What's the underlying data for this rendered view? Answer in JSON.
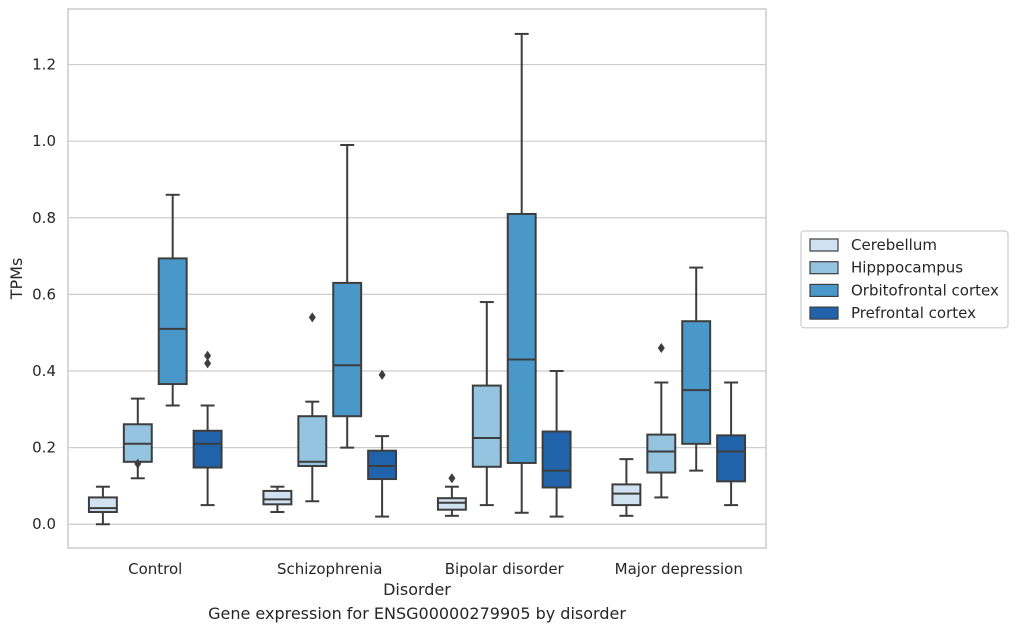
{
  "caption": "Gene expression for ENSG00000279905 by disorder",
  "chart_data": {
    "type": "box",
    "title": "",
    "xlabel": "Disorder",
    "ylabel": "TPMs",
    "ylim": [
      -0.062,
      1.345
    ],
    "yticks": [
      0.0,
      0.2,
      0.4,
      0.6,
      0.8,
      1.0,
      1.2
    ],
    "ytick_labels": [
      "0.0",
      "0.2",
      "0.4",
      "0.6",
      "0.8",
      "1.0",
      "1.2"
    ],
    "grid": "horizontal",
    "legend_position": "right",
    "categories": [
      "Control",
      "Schizophrenia",
      "Bipolar disorder",
      "Major depression"
    ],
    "series": [
      {
        "name": "Cerebellum",
        "color": "#d0e1f2",
        "boxes": [
          {
            "whisker_low": 0.0,
            "q1": 0.032,
            "median": 0.042,
            "q3": 0.07,
            "whisker_high": 0.098,
            "outliers": []
          },
          {
            "whisker_low": 0.032,
            "q1": 0.052,
            "median": 0.065,
            "q3": 0.087,
            "whisker_high": 0.098,
            "outliers": []
          },
          {
            "whisker_low": 0.022,
            "q1": 0.038,
            "median": 0.056,
            "q3": 0.068,
            "whisker_high": 0.098,
            "outliers": [
              0.12
            ]
          },
          {
            "whisker_low": 0.022,
            "q1": 0.05,
            "median": 0.08,
            "q3": 0.104,
            "whisker_high": 0.17,
            "outliers": []
          }
        ]
      },
      {
        "name": "Hipppocampus",
        "color": "#94c4df",
        "boxes": [
          {
            "whisker_low": 0.12,
            "q1": 0.163,
            "median": 0.21,
            "q3": 0.261,
            "whisker_high": 0.328,
            "outliers": [
              0.158
            ]
          },
          {
            "whisker_low": 0.06,
            "q1": 0.152,
            "median": 0.163,
            "q3": 0.282,
            "whisker_high": 0.32,
            "outliers": [
              0.54
            ]
          },
          {
            "whisker_low": 0.05,
            "q1": 0.15,
            "median": 0.225,
            "q3": 0.362,
            "whisker_high": 0.58,
            "outliers": []
          },
          {
            "whisker_low": 0.07,
            "q1": 0.135,
            "median": 0.19,
            "q3": 0.234,
            "whisker_high": 0.37,
            "outliers": [
              0.46
            ]
          }
        ]
      },
      {
        "name": "Orbitofrontal cortex",
        "color": "#4a98c9",
        "boxes": [
          {
            "whisker_low": 0.31,
            "q1": 0.366,
            "median": 0.51,
            "q3": 0.694,
            "whisker_high": 0.86,
            "outliers": []
          },
          {
            "whisker_low": 0.2,
            "q1": 0.282,
            "median": 0.415,
            "q3": 0.63,
            "whisker_high": 0.99,
            "outliers": []
          },
          {
            "whisker_low": 0.03,
            "q1": 0.16,
            "median": 0.43,
            "q3": 0.81,
            "whisker_high": 1.28,
            "outliers": []
          },
          {
            "whisker_low": 0.14,
            "q1": 0.21,
            "median": 0.35,
            "q3": 0.53,
            "whisker_high": 0.67,
            "outliers": []
          }
        ]
      },
      {
        "name": "Prefrontal cortex",
        "color": "#2163aa",
        "boxes": [
          {
            "whisker_low": 0.05,
            "q1": 0.148,
            "median": 0.21,
            "q3": 0.244,
            "whisker_high": 0.31,
            "outliers": [
              0.42,
              0.44
            ]
          },
          {
            "whisker_low": 0.02,
            "q1": 0.118,
            "median": 0.152,
            "q3": 0.192,
            "whisker_high": 0.23,
            "outliers": [
              0.39
            ]
          },
          {
            "whisker_low": 0.02,
            "q1": 0.096,
            "median": 0.14,
            "q3": 0.242,
            "whisker_high": 0.4,
            "outliers": []
          },
          {
            "whisker_low": 0.05,
            "q1": 0.112,
            "median": 0.19,
            "q3": 0.232,
            "whisker_high": 0.37,
            "outliers": []
          }
        ]
      }
    ]
  }
}
